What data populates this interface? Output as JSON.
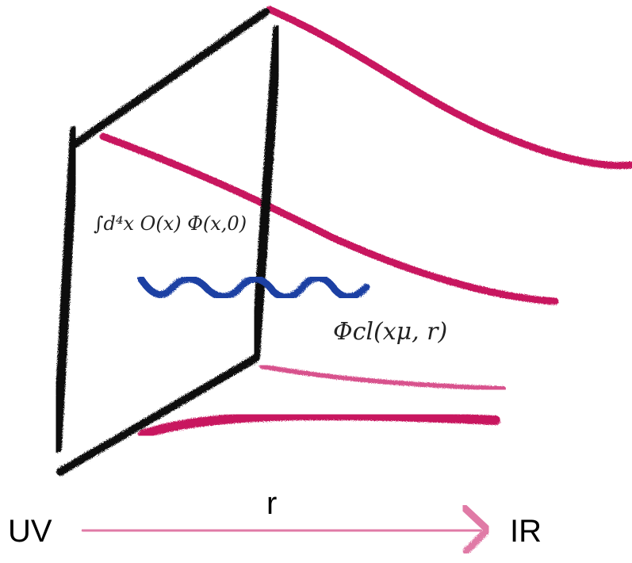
{
  "labels": {
    "uv": "UV",
    "r": "r",
    "ir": "IR"
  },
  "annotations": {
    "operator": "∫d⁴x O(x) Φ(x,0)",
    "field": "Φcl(xμ, r)"
  }
}
